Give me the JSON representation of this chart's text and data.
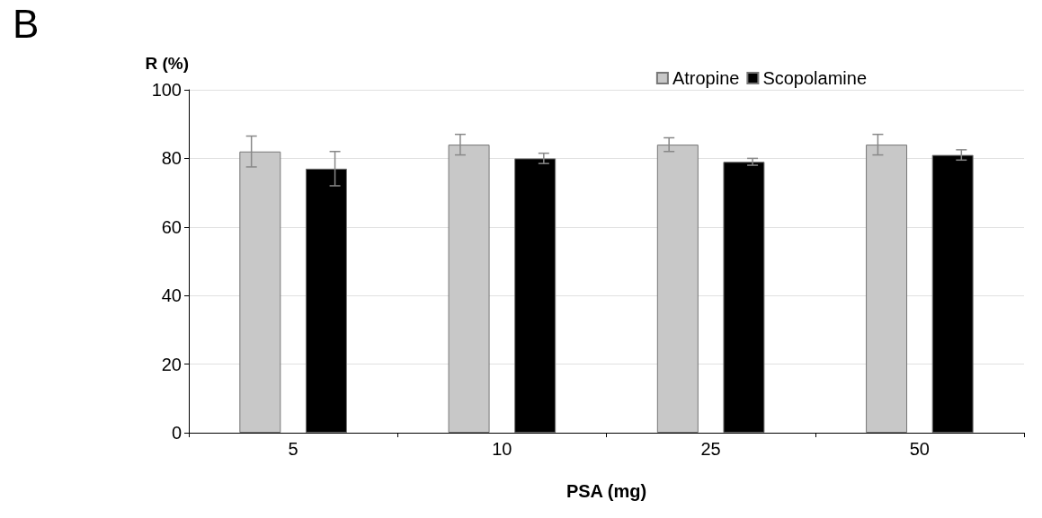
{
  "chart_data": {
    "type": "bar",
    "annotations": [
      "B"
    ],
    "xlabel": "PSA (mg)",
    "ylabel": "R (%)",
    "categories": [
      "5",
      "10",
      "25",
      "50"
    ],
    "series": [
      {
        "name": "Atropine",
        "color": "#c8c8c8",
        "values": [
          82,
          84,
          84,
          84
        ],
        "errors": [
          4.5,
          3,
          2,
          3
        ]
      },
      {
        "name": "Scopolamine",
        "color": "#000000",
        "values": [
          77,
          80,
          79,
          81
        ],
        "errors": [
          5,
          1.5,
          1,
          1.5
        ]
      }
    ],
    "ylim": [
      0,
      100
    ],
    "yticks": [
      0,
      20,
      40,
      60,
      80,
      100
    ],
    "grid": "y",
    "legend": "top right"
  }
}
